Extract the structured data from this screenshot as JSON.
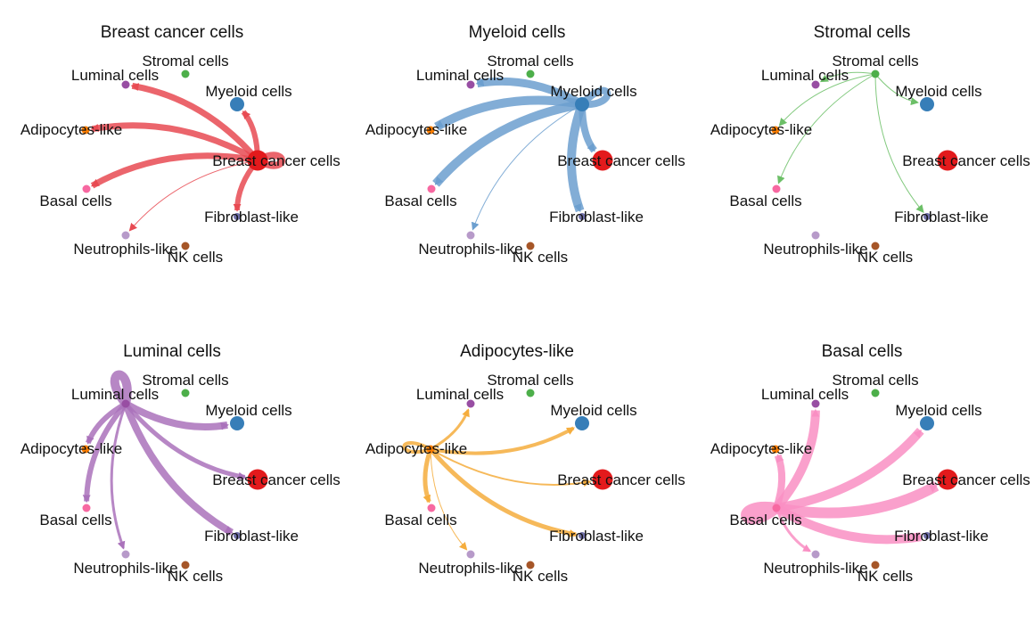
{
  "colors": {
    "Breast cancer cells": "#e31a1c",
    "Myeloid cells": "#377eb8",
    "Stromal cells": "#4daf4a",
    "Luminal cells": "#984ea3",
    "Adipocytes-like": "#ff7f00",
    "Basal cells": "#f768a1",
    "Fibroblast-like": "#6f6fa8",
    "Neutrophils-like": "#b79ac9",
    "NK cells": "#a65628"
  },
  "edge_colors": {
    "Breast cancer cells": "#e84a52",
    "Myeloid cells": "#6c9fcf",
    "Stromal cells": "#6cbf67",
    "Luminal cells": "#aa72bb",
    "Adipocytes-like": "#f5ad3d",
    "Basal cells": "#f98fc3"
  },
  "nodes": [
    {
      "name": "Stromal cells",
      "size": 1
    },
    {
      "name": "Luminal cells",
      "size": 1
    },
    {
      "name": "Myeloid cells",
      "size": 2
    },
    {
      "name": "Adipocytes-like",
      "size": 1
    },
    {
      "name": "Breast cancer cells",
      "size": 3
    },
    {
      "name": "Basal cells",
      "size": 1
    },
    {
      "name": "Fibroblast-like",
      "size": 0
    },
    {
      "name": "Neutrophils-like",
      "size": 1
    },
    {
      "name": "NK cells",
      "size": 1
    }
  ],
  "panels": [
    {
      "title": "Breast cancer cells",
      "source": "Breast cancer cells",
      "edges": [
        {
          "to": "Breast cancer cells",
          "weight": 8
        },
        {
          "to": "Luminal cells",
          "weight": 7
        },
        {
          "to": "Myeloid cells",
          "weight": 6
        },
        {
          "to": "Adipocytes-like",
          "weight": 7
        },
        {
          "to": "Basal cells",
          "weight": 7
        },
        {
          "to": "Fibroblast-like",
          "weight": 6
        },
        {
          "to": "Neutrophils-like",
          "weight": 1
        }
      ]
    },
    {
      "title": "Myeloid cells",
      "source": "Myeloid cells",
      "edges": [
        {
          "to": "Myeloid cells",
          "weight": 8
        },
        {
          "to": "Luminal cells",
          "weight": 9
        },
        {
          "to": "Adipocytes-like",
          "weight": 10
        },
        {
          "to": "Breast cancer cells",
          "weight": 8
        },
        {
          "to": "Basal cells",
          "weight": 10
        },
        {
          "to": "Fibroblast-like",
          "weight": 10
        },
        {
          "to": "Neutrophils-like",
          "weight": 1
        }
      ]
    },
    {
      "title": "Stromal cells",
      "source": "Stromal cells",
      "edges": [
        {
          "to": "Luminal cells",
          "weight": 1
        },
        {
          "to": "Myeloid cells",
          "weight": 1
        },
        {
          "to": "Adipocytes-like",
          "weight": 1
        },
        {
          "to": "Basal cells",
          "weight": 1
        },
        {
          "to": "Fibroblast-like",
          "weight": 1
        }
      ]
    },
    {
      "title": "Luminal cells",
      "source": "Luminal cells",
      "edges": [
        {
          "to": "Luminal cells",
          "weight": 10
        },
        {
          "to": "Myeloid cells",
          "weight": 8
        },
        {
          "to": "Adipocytes-like",
          "weight": 6
        },
        {
          "to": "Breast cancer cells",
          "weight": 5
        },
        {
          "to": "Basal cells",
          "weight": 6
        },
        {
          "to": "Fibroblast-like",
          "weight": 8
        },
        {
          "to": "Neutrophils-like",
          "weight": 3
        }
      ]
    },
    {
      "title": "Adipocytes-like",
      "source": "Adipocytes-like",
      "edges": [
        {
          "to": "Adipocytes-like",
          "weight": 4
        },
        {
          "to": "Luminal cells",
          "weight": 3
        },
        {
          "to": "Myeloid cells",
          "weight": 4
        },
        {
          "to": "Breast cancer cells",
          "weight": 2
        },
        {
          "to": "Basal cells",
          "weight": 5
        },
        {
          "to": "Fibroblast-like",
          "weight": 5
        },
        {
          "to": "Neutrophils-like",
          "weight": 1
        }
      ]
    },
    {
      "title": "Basal cells",
      "source": "Basal cells",
      "edges": [
        {
          "to": "Basal cells",
          "weight": 12
        },
        {
          "to": "Luminal cells",
          "weight": 10
        },
        {
          "to": "Myeloid cells",
          "weight": 10
        },
        {
          "to": "Adipocytes-like",
          "weight": 8
        },
        {
          "to": "Breast cancer cells",
          "weight": 12
        },
        {
          "to": "Fibroblast-like",
          "weight": 10
        },
        {
          "to": "Neutrophils-like",
          "weight": 3
        }
      ]
    }
  ]
}
